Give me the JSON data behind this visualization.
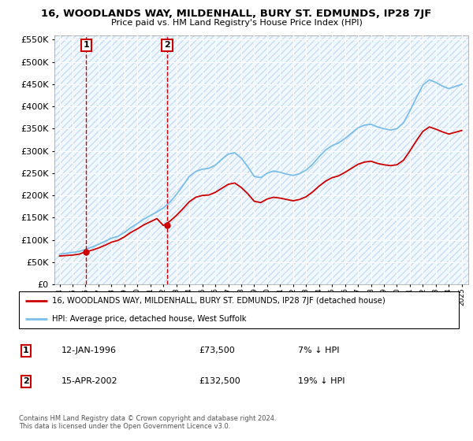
{
  "title": "16, WOODLANDS WAY, MILDENHALL, BURY ST. EDMUNDS, IP28 7JF",
  "subtitle": "Price paid vs. HM Land Registry's House Price Index (HPI)",
  "legend_line1": "16, WOODLANDS WAY, MILDENHALL, BURY ST. EDMUNDS, IP28 7JF (detached house)",
  "legend_line2": "HPI: Average price, detached house, West Suffolk",
  "footer": "Contains HM Land Registry data © Crown copyright and database right 2024.\nThis data is licensed under the Open Government Licence v3.0.",
  "purchase1_year": 1996.04,
  "purchase1_value": 73500,
  "purchase2_year": 2002.29,
  "purchase2_value": 132500,
  "hpi_color": "#7bbfea",
  "price_color": "#cc0000",
  "vline_color": "#cc0000",
  "grid_color": "#ccddee",
  "bg_color": "#ddeeff",
  "ylim_max": 560000,
  "ylim_min": 0,
  "xlim_min": 1993.6,
  "xlim_max": 2025.5,
  "hpi_years": [
    1994.0,
    1994.5,
    1995.0,
    1995.5,
    1996.0,
    1996.5,
    1997.0,
    1997.5,
    1998.0,
    1998.5,
    1999.0,
    1999.5,
    2000.0,
    2000.5,
    2001.0,
    2001.5,
    2002.0,
    2002.5,
    2003.0,
    2003.5,
    2004.0,
    2004.5,
    2005.0,
    2005.5,
    2006.0,
    2006.5,
    2007.0,
    2007.5,
    2008.0,
    2008.5,
    2009.0,
    2009.5,
    2010.0,
    2010.5,
    2011.0,
    2011.5,
    2012.0,
    2012.5,
    2013.0,
    2013.5,
    2014.0,
    2014.5,
    2015.0,
    2015.5,
    2016.0,
    2016.5,
    2017.0,
    2017.5,
    2018.0,
    2018.5,
    2019.0,
    2019.5,
    2020.0,
    2020.5,
    2021.0,
    2021.5,
    2022.0,
    2022.5,
    2023.0,
    2023.5,
    2024.0,
    2024.5,
    2025.0
  ],
  "hpi_values": [
    68000,
    70000,
    72000,
    74000,
    79000,
    84000,
    90000,
    97000,
    104000,
    108000,
    117000,
    128000,
    137000,
    147000,
    155000,
    163000,
    172000,
    185000,
    202000,
    222000,
    243000,
    254000,
    259000,
    261000,
    268000,
    281000,
    293000,
    296000,
    284000,
    265000,
    243000,
    240000,
    250000,
    255000,
    252000,
    248000,
    245000,
    249000,
    257000,
    270000,
    287000,
    302000,
    312000,
    318000,
    328000,
    340000,
    352000,
    358000,
    360000,
    354000,
    350000,
    347000,
    350000,
    363000,
    390000,
    420000,
    448000,
    460000,
    454000,
    446000,
    440000,
    445000,
    450000
  ],
  "price_values": [
    64000,
    65000,
    66000,
    68000,
    73500,
    77000,
    82000,
    88000,
    95000,
    99000,
    107000,
    117000,
    125000,
    134000,
    141000,
    148000,
    132500,
    142000,
    155000,
    170000,
    186000,
    196000,
    200000,
    201000,
    207000,
    216000,
    225000,
    228000,
    218000,
    204000,
    187000,
    184000,
    192000,
    196000,
    194000,
    191000,
    188000,
    191000,
    197000,
    208000,
    221000,
    232000,
    240000,
    244000,
    252000,
    261000,
    270000,
    275000,
    277000,
    272000,
    269000,
    267000,
    269000,
    279000,
    300000,
    323000,
    344000,
    354000,
    349000,
    343000,
    338000,
    342000,
    346000
  ]
}
